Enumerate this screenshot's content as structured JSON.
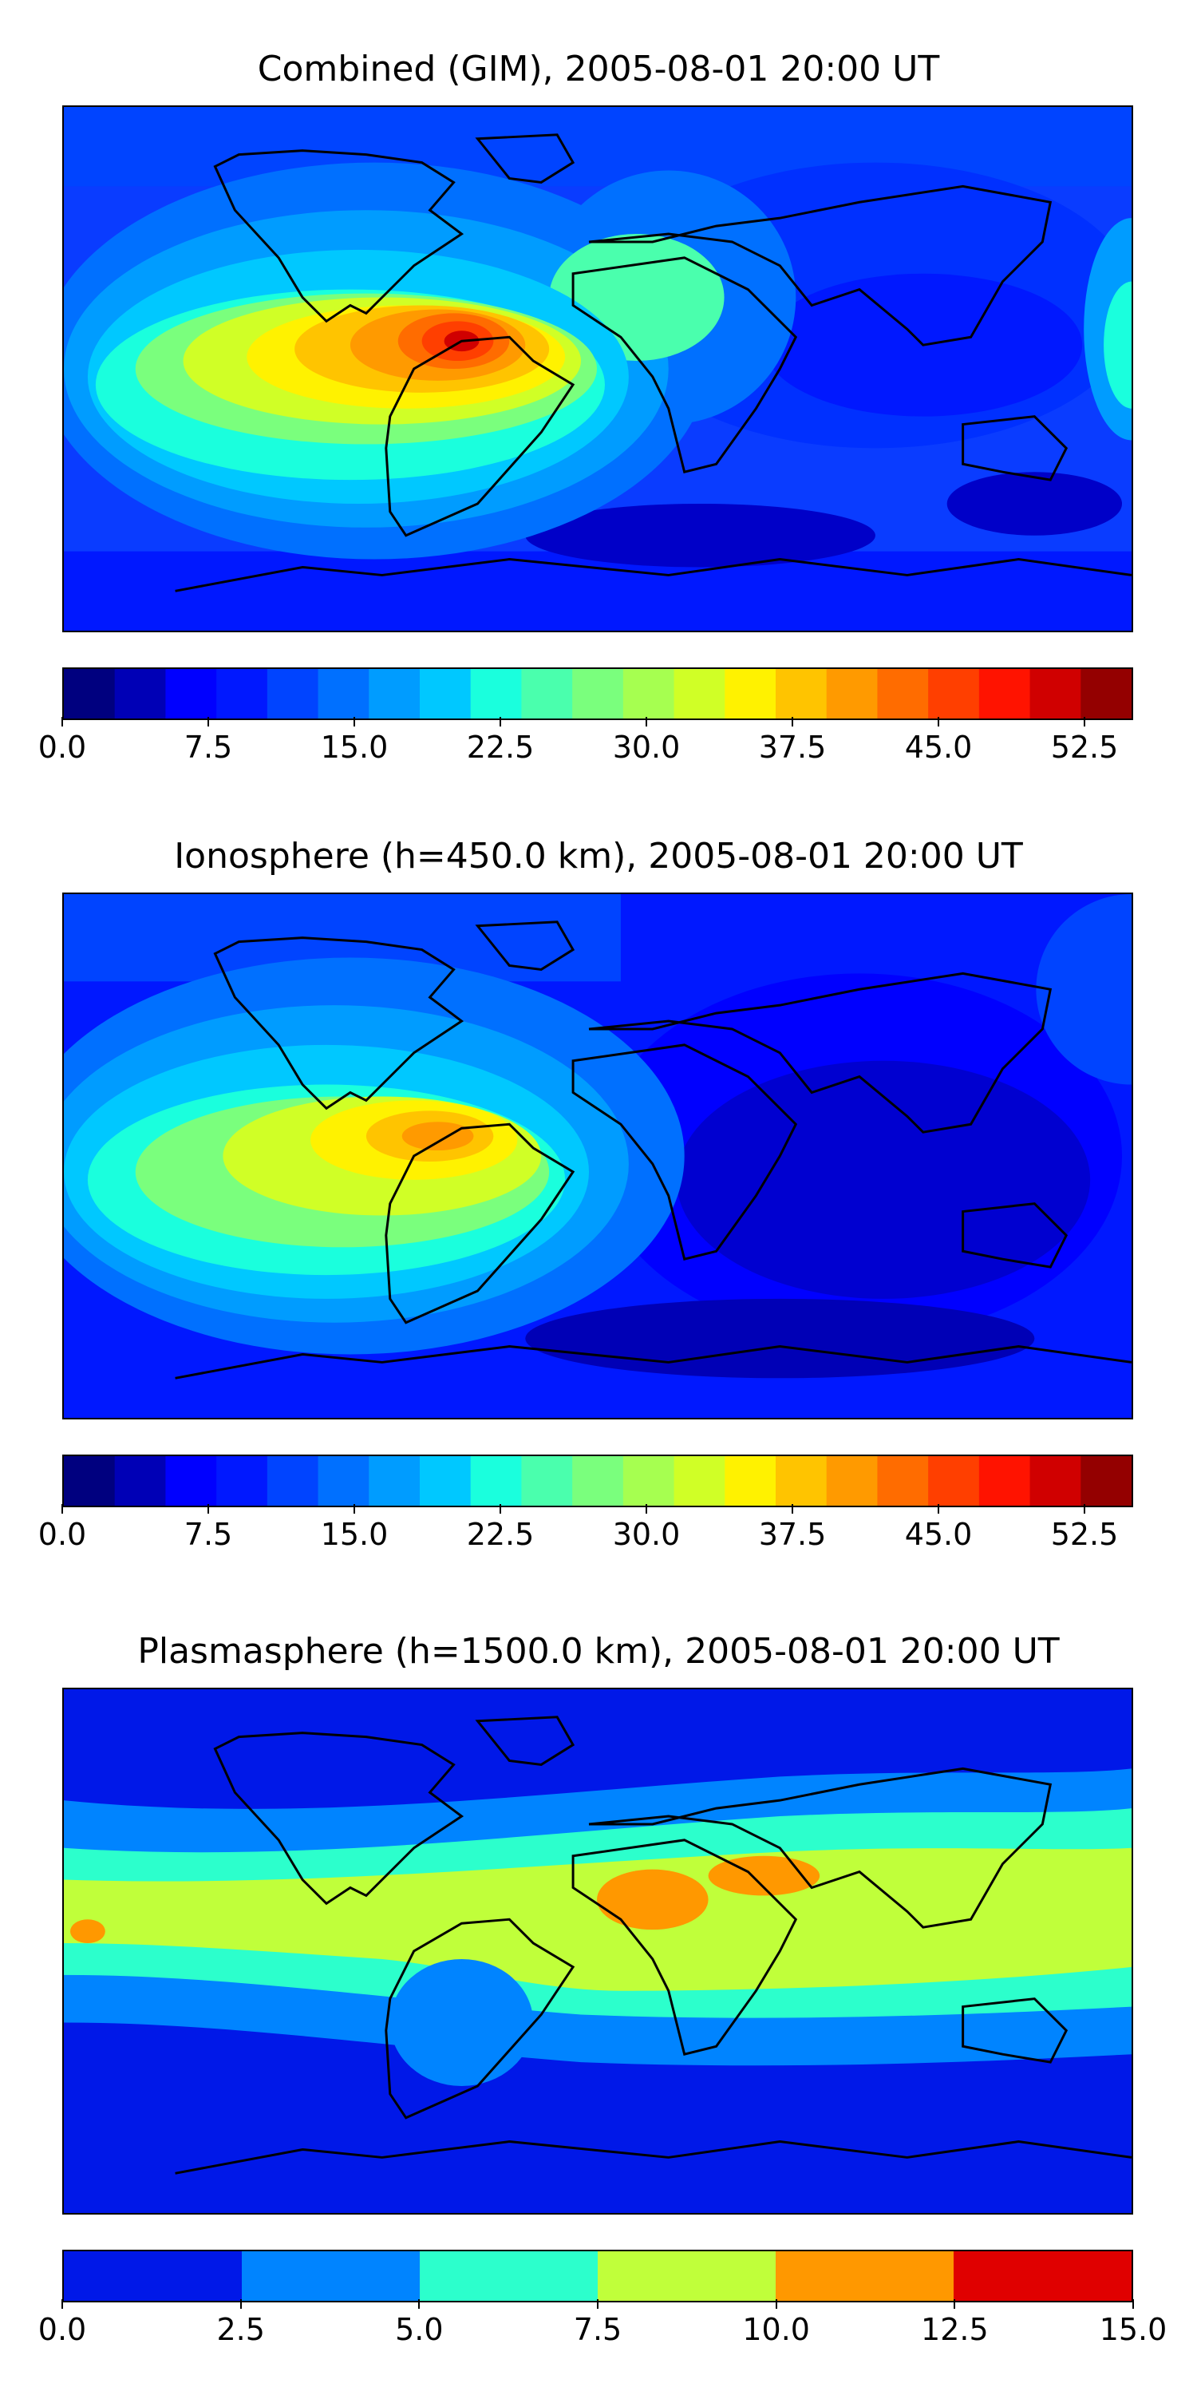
{
  "panels": [
    {
      "title": "Combined (GIM), 2005-08-01 20:00 UT",
      "colorbar": {
        "min": 0.0,
        "max": 55.0,
        "tick_values": [
          0.0,
          7.5,
          15.0,
          22.5,
          30.0,
          37.5,
          45.0,
          52.5
        ],
        "tick_labels": [
          "0.0",
          "7.5",
          "15.0",
          "22.5",
          "30.0",
          "37.5",
          "45.0",
          "52.5"
        ],
        "colors": [
          "#00007f",
          "#0000b6",
          "#0000ff",
          "#0018ff",
          "#0044ff",
          "#0070ff",
          "#009cff",
          "#00c8ff",
          "#1affdd",
          "#4affad",
          "#7aff7d",
          "#a6ff50",
          "#d0ff26",
          "#fff200",
          "#ffc400",
          "#ff9a00",
          "#ff6c00",
          "#ff3f00",
          "#ff1300",
          "#d00000",
          "#940000"
        ]
      },
      "field": {
        "background": "#0a3cff",
        "peak_value": 53.0,
        "peak_region": "northern South America"
      }
    },
    {
      "title": "Ionosphere  (h=450.0 km), 2005-08-01 20:00 UT",
      "colorbar": {
        "min": 0.0,
        "max": 55.0,
        "tick_values": [
          0.0,
          7.5,
          15.0,
          22.5,
          30.0,
          37.5,
          45.0,
          52.5
        ],
        "tick_labels": [
          "0.0",
          "7.5",
          "15.0",
          "22.5",
          "30.0",
          "37.5",
          "45.0",
          "52.5"
        ],
        "colors": [
          "#00007f",
          "#0000b6",
          "#0000ff",
          "#0018ff",
          "#0044ff",
          "#0070ff",
          "#009cff",
          "#00c8ff",
          "#1affdd",
          "#4affad",
          "#7aff7d",
          "#a6ff50",
          "#d0ff26",
          "#fff200",
          "#ffc400",
          "#ff9a00",
          "#ff6c00",
          "#ff3f00",
          "#ff1300",
          "#d00000",
          "#940000"
        ]
      },
      "field": {
        "background": "#0018ff",
        "peak_value": 41.0,
        "peak_region": "northern South America"
      }
    },
    {
      "title": "Plasmasphere (h=1500.0 km), 2005-08-01 20:00 UT",
      "colorbar": {
        "min": 0.0,
        "max": 15.0,
        "tick_values": [
          0.0,
          2.5,
          5.0,
          7.5,
          10.0,
          12.5,
          15.0
        ],
        "tick_labels": [
          "0.0",
          "2.5",
          "5.0",
          "7.5",
          "10.0",
          "12.5",
          "15.0"
        ],
        "colors": [
          "#0018e8",
          "#0084ff",
          "#2cffcc",
          "#c0ff3a",
          "#ff9800",
          "#e00000"
        ]
      },
      "field": {
        "background": "#0018e8",
        "peak_value": 12.0,
        "peak_region": "North Africa / Arabia"
      }
    }
  ]
}
